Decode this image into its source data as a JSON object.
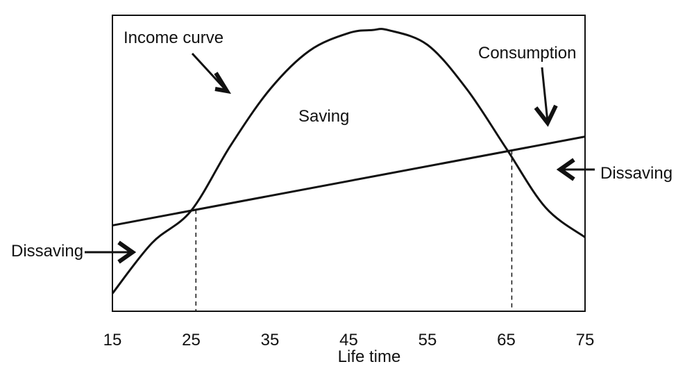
{
  "chart_data": {
    "type": "line",
    "title": "",
    "xlabel": "Life time",
    "ylabel": "",
    "xlim": [
      15,
      75
    ],
    "ylim": [
      0,
      100
    ],
    "x_ticks": [
      15,
      25,
      35,
      45,
      55,
      65,
      75
    ],
    "y_ticks": [],
    "grid": false,
    "series": [
      {
        "name": "Income curve",
        "kind": "curve",
        "x": [
          15,
          20,
          25,
          30,
          35,
          40,
          45,
          48,
          50,
          55,
          60,
          65,
          70,
          75
        ],
        "y": [
          6,
          23,
          34,
          56,
          75,
          88,
          94,
          95,
          95,
          90,
          75,
          55,
          35,
          25
        ]
      },
      {
        "name": "Consumption",
        "kind": "line",
        "x": [
          15,
          75
        ],
        "y": [
          29,
          59
        ]
      }
    ],
    "reference_lines": [
      {
        "x": 25.6,
        "style": "dashed"
      },
      {
        "x": 65.7,
        "style": "dashed"
      }
    ],
    "annotations": [
      {
        "id": "income",
        "text": "Income curve"
      },
      {
        "id": "consumption",
        "text": "Consumption"
      },
      {
        "id": "saving",
        "text": "Saving"
      },
      {
        "id": "dissaving_left",
        "text": "Dissaving"
      },
      {
        "id": "dissaving_right",
        "text": "Dissaving"
      }
    ]
  }
}
